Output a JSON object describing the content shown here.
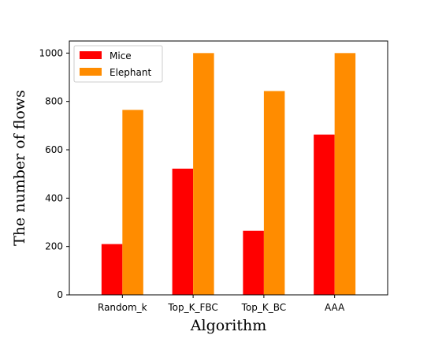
{
  "chart_data": {
    "type": "bar",
    "title": "",
    "xlabel": "Algorithm",
    "ylabel": "The number of flows",
    "categories": [
      "Random_k",
      "Top_K_FBC",
      "Top_K_BC",
      "AAA"
    ],
    "series": [
      {
        "name": "Mice",
        "color": "#ff0000",
        "values": [
          210,
          522,
          265,
          663
        ]
      },
      {
        "name": "Elephant",
        "color": "#ff8c00",
        "values": [
          765,
          1000,
          843,
          1000
        ]
      }
    ],
    "ylim": [
      0,
      1050
    ],
    "yticks": [
      "0",
      "200",
      "400",
      "600",
      "800",
      "1000"
    ],
    "legend_position": "top-left",
    "grid": false
  }
}
